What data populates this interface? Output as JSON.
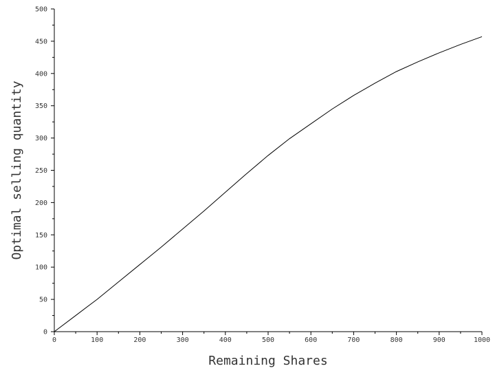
{
  "chart_data": {
    "type": "line",
    "xlabel": "Remaining Shares",
    "ylabel": "Optimal selling quantity",
    "xlim": [
      0,
      1000
    ],
    "ylim": [
      0,
      500
    ],
    "grid": false,
    "x_ticks": [
      0,
      100,
      200,
      300,
      400,
      500,
      600,
      700,
      800,
      900,
      1000
    ],
    "y_ticks": [
      0,
      50,
      100,
      150,
      200,
      250,
      300,
      350,
      400,
      450,
      500
    ],
    "x_tick_labels": [
      "0",
      "100",
      "200",
      "300",
      "400",
      "500",
      "600",
      "700",
      "800",
      "900",
      "1000"
    ],
    "y_tick_labels": [
      "0",
      "50",
      "100",
      "150",
      "200",
      "250",
      "300",
      "350",
      "400",
      "450",
      "500"
    ],
    "series": [
      {
        "color": "#000000",
        "x": [
          0,
          50,
          100,
          150,
          200,
          250,
          300,
          350,
          400,
          450,
          500,
          550,
          600,
          650,
          700,
          750,
          800,
          850,
          900,
          950,
          1000
        ],
        "y": [
          0,
          25,
          50,
          77,
          104,
          131,
          159,
          187,
          216,
          245,
          273,
          299,
          322,
          345,
          366,
          385,
          403,
          418,
          432,
          445,
          457
        ]
      }
    ]
  }
}
